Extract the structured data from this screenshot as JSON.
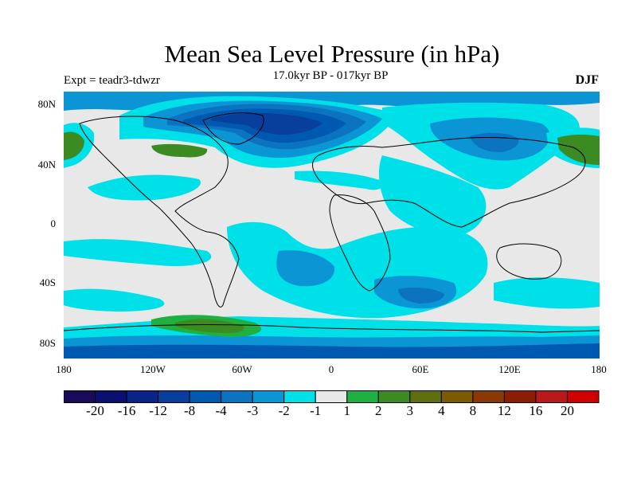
{
  "header": {
    "title": "Mean Sea Level Pressure (in hPa)",
    "subtitle": "17.0kyr BP - 017kyr BP",
    "experiment": "Expt = teadr3-tdwzr",
    "season": "DJF"
  },
  "axes": {
    "lat_ticks": [
      "80N",
      "40N",
      "0",
      "40S",
      "80S"
    ],
    "lon_ticks": [
      "180",
      "120W",
      "60W",
      "0",
      "60E",
      "120E",
      "180"
    ]
  },
  "legend": {
    "colors": [
      "#1a0a5a",
      "#0a1070",
      "#0a2485",
      "#083e9c",
      "#0059b0",
      "#0c73c0",
      "#0c95d4",
      "#00e0e8",
      "#e8e8e8",
      "#1eb040",
      "#3b8a22",
      "#5e6e10",
      "#7c5a05",
      "#8a3805",
      "#8a1e05",
      "#b81a1a",
      "#d00000"
    ],
    "labels": [
      "-20",
      "-16",
      "-12",
      "-8",
      "-4",
      "-3",
      "-2",
      "-1",
      "1",
      "2",
      "3",
      "4",
      "8",
      "12",
      "16",
      "20"
    ]
  }
}
